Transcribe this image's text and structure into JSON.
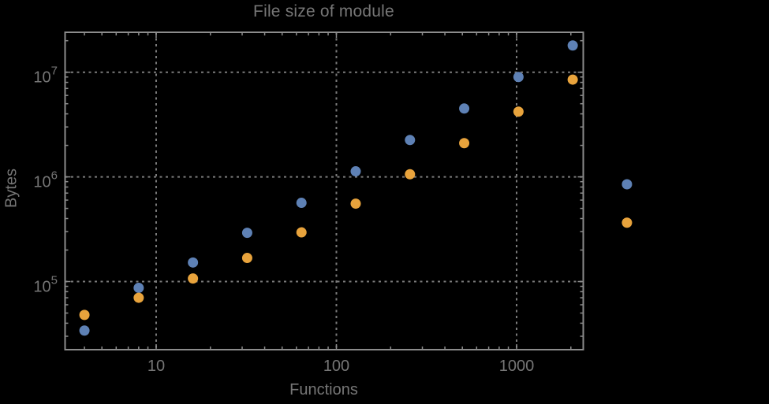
{
  "colors": {
    "background": "#000000",
    "frame": "#8c8c8c",
    "grid": "#7b7b7b",
    "text": "#767676",
    "series1": "#5E81B5",
    "series2": "#E8A33C"
  },
  "chart_data": {
    "type": "scatter",
    "title": "File size of module",
    "xlabel": "Functions",
    "ylabel": "Bytes",
    "x_scale": "log10",
    "y_scale": "log10",
    "xlim": [
      3.1,
      2330
    ],
    "ylim": [
      22700,
      24000000
    ],
    "grid": "dotted",
    "legend": "none",
    "x_ticks": [
      {
        "value": 10,
        "label": "10"
      },
      {
        "value": 100,
        "label": "100"
      },
      {
        "value": 1000,
        "label": "1000"
      }
    ],
    "y_ticks": [
      {
        "value": 100000,
        "mantissa": "10",
        "exponent": "5"
      },
      {
        "value": 1000000,
        "mantissa": "10",
        "exponent": "6"
      },
      {
        "value": 10000000,
        "mantissa": "10",
        "exponent": "7"
      }
    ],
    "x_minor_ticks": [
      4,
      5,
      6,
      7,
      8,
      9,
      20,
      30,
      40,
      50,
      60,
      70,
      80,
      90,
      200,
      300,
      400,
      500,
      600,
      700,
      800,
      900,
      2000
    ],
    "y_minor_ticks": [
      30000,
      40000,
      50000,
      60000,
      70000,
      80000,
      90000,
      200000,
      300000,
      400000,
      500000,
      600000,
      700000,
      800000,
      900000,
      2000000,
      3000000,
      4000000,
      5000000,
      6000000,
      7000000,
      8000000,
      9000000,
      20000000
    ],
    "series": [
      {
        "name": "series-1",
        "color": "#5E81B5",
        "points": [
          [
            4,
            34000
          ],
          [
            8,
            87000
          ],
          [
            16,
            152000
          ],
          [
            32,
            292000
          ],
          [
            64,
            565000
          ],
          [
            128,
            1130000
          ],
          [
            256,
            2250000
          ],
          [
            512,
            4500000
          ],
          [
            1024,
            9000000
          ],
          [
            2048,
            18000000
          ],
          [
            4096,
            850000
          ]
        ]
      },
      {
        "name": "series-2",
        "color": "#E8A33C",
        "points": [
          [
            4,
            48000
          ],
          [
            8,
            70000
          ],
          [
            16,
            107000
          ],
          [
            32,
            168000
          ],
          [
            64,
            295000
          ],
          [
            128,
            555000
          ],
          [
            256,
            1060000
          ],
          [
            512,
            2100000
          ],
          [
            1024,
            4200000
          ],
          [
            2048,
            8500000
          ],
          [
            4096,
            365000
          ]
        ]
      }
    ]
  }
}
